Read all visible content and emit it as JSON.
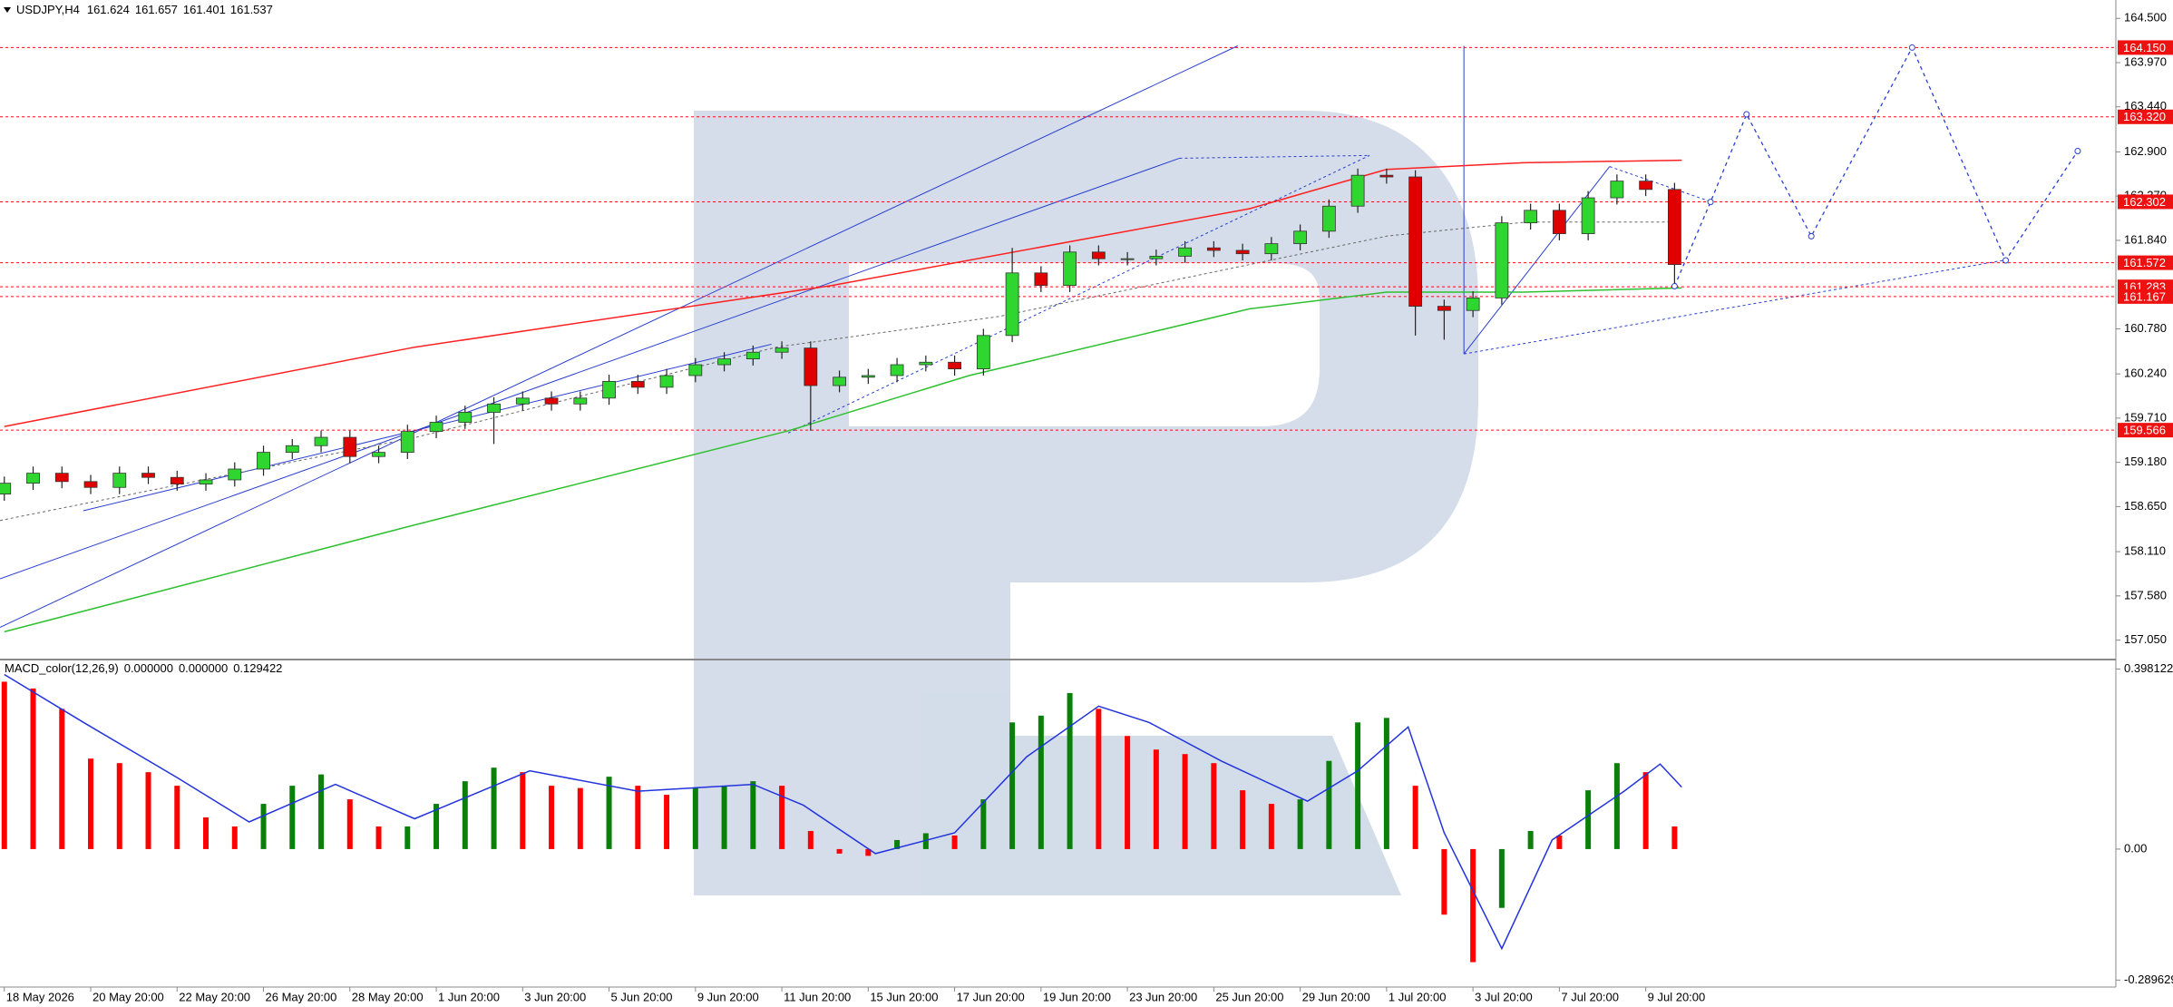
{
  "chart_data": [
    {
      "type": "candlestick",
      "title": "USDJPY,H4",
      "readout": [
        161.624,
        161.657,
        161.401,
        161.537
      ],
      "up_color": "#2fd62f",
      "down_color": "#e00000",
      "xlim": [
        -0.6,
        293.3
      ],
      "ylim": [
        156.85,
        164.72
      ],
      "x": [
        0,
        4,
        8,
        12,
        16,
        20,
        24,
        28,
        32,
        36,
        40,
        44,
        48,
        52,
        56,
        60,
        64,
        68,
        72,
        76,
        80,
        84,
        88,
        92,
        96,
        100,
        104,
        108,
        112,
        116,
        120,
        124,
        128,
        132,
        136,
        140,
        144,
        148,
        152,
        156,
        160,
        164,
        168,
        172,
        176,
        180,
        184,
        188,
        192,
        196,
        200,
        204,
        208,
        212,
        216,
        220,
        224,
        228,
        232
      ],
      "open": [
        158.8,
        158.93,
        159.05,
        158.95,
        158.88,
        159.05,
        159.0,
        158.92,
        158.97,
        159.1,
        159.3,
        159.38,
        159.48,
        159.25,
        159.3,
        159.55,
        159.66,
        159.78,
        159.88,
        159.95,
        159.88,
        159.95,
        160.15,
        160.08,
        160.22,
        160.35,
        160.42,
        160.5,
        160.55,
        160.1,
        160.2,
        160.22,
        160.35,
        160.38,
        160.3,
        160.7,
        161.45,
        161.3,
        161.7,
        161.62,
        161.62,
        161.65,
        161.75,
        161.72,
        161.68,
        161.8,
        161.95,
        162.25,
        162.62,
        162.6,
        161.05,
        161.0,
        161.15,
        162.05,
        162.2,
        161.92,
        162.35,
        162.55,
        162.45
      ],
      "high": [
        159.01,
        159.13,
        159.13,
        159.03,
        159.13,
        159.13,
        159.08,
        159.05,
        159.18,
        159.38,
        159.46,
        159.56,
        159.56,
        159.38,
        159.63,
        159.74,
        159.86,
        159.96,
        160.03,
        160.03,
        160.03,
        160.23,
        160.23,
        160.3,
        160.43,
        160.5,
        160.58,
        160.63,
        160.63,
        160.28,
        160.3,
        160.43,
        160.46,
        160.46,
        160.78,
        161.75,
        161.53,
        161.78,
        161.78,
        161.7,
        161.73,
        161.83,
        161.83,
        161.8,
        161.88,
        162.03,
        162.33,
        162.7,
        162.7,
        162.68,
        161.13,
        161.23,
        162.13,
        162.28,
        162.28,
        162.43,
        162.63,
        162.63,
        162.53
      ],
      "low": [
        158.72,
        158.85,
        158.87,
        158.8,
        158.8,
        158.92,
        158.84,
        158.84,
        158.89,
        159.02,
        159.22,
        159.3,
        159.17,
        159.17,
        159.22,
        159.47,
        159.58,
        159.4,
        159.8,
        159.8,
        159.8,
        159.87,
        160.0,
        160.0,
        160.14,
        160.27,
        160.34,
        160.42,
        159.56,
        160.02,
        160.12,
        160.14,
        160.27,
        160.22,
        160.22,
        160.62,
        161.22,
        161.22,
        161.54,
        161.54,
        161.54,
        161.57,
        161.64,
        161.6,
        161.6,
        161.72,
        161.87,
        162.17,
        162.52,
        160.7,
        160.65,
        160.92,
        161.07,
        161.97,
        161.84,
        161.84,
        162.27,
        162.37,
        161.28
      ],
      "close": [
        158.93,
        159.05,
        158.95,
        158.88,
        159.05,
        159.0,
        158.92,
        158.97,
        159.1,
        159.3,
        159.38,
        159.48,
        159.25,
        159.3,
        159.55,
        159.66,
        159.78,
        159.88,
        159.95,
        159.88,
        159.95,
        160.15,
        160.08,
        160.22,
        160.35,
        160.42,
        160.5,
        160.55,
        160.1,
        160.2,
        160.22,
        160.35,
        160.38,
        160.3,
        160.7,
        161.45,
        161.3,
        161.7,
        161.62,
        161.62,
        161.65,
        161.75,
        161.72,
        161.68,
        161.8,
        161.95,
        162.25,
        162.62,
        162.6,
        161.05,
        161.0,
        161.15,
        162.05,
        162.2,
        161.92,
        162.35,
        162.55,
        162.45,
        161.55
      ],
      "overlays": [
        {
          "color": "#ff2020",
          "x": [
            0,
            57,
            115,
            173,
            192,
            211,
            233
          ],
          "values": [
            159.61,
            160.56,
            161.3,
            162.22,
            162.69,
            162.77,
            162.8
          ]
        },
        {
          "color": "#2ec02e",
          "x": [
            0,
            57,
            109,
            134,
            173,
            192,
            211,
            233
          ],
          "values": [
            157.15,
            158.43,
            159.56,
            160.22,
            161.02,
            161.22,
            161.22,
            161.27
          ]
        }
      ],
      "forecast": {
        "color": "#2a3fd0",
        "x": [
          232,
          237,
          242,
          251,
          265,
          278,
          288
        ],
        "values": [
          161.29,
          162.3,
          163.35,
          161.89,
          164.15,
          161.6,
          162.91
        ]
      },
      "level_color": "#ee1111",
      "levels": [
        {
          "value": 164.15,
          "label": "164.150"
        },
        {
          "value": 163.32,
          "label": "163.320"
        },
        {
          "value": 162.302,
          "label": "162.302"
        },
        {
          "value": 161.572,
          "label": "161.572"
        },
        {
          "value": 161.283,
          "label": "161.283"
        },
        {
          "value": 161.167,
          "label": "161.167"
        },
        {
          "value": 159.566,
          "label": "159.566"
        }
      ],
      "yticks": [
        {
          "value": 164.5,
          "label": "164.500"
        },
        {
          "value": 163.97,
          "label": "163.970"
        },
        {
          "value": 163.44,
          "label": "163.440"
        },
        {
          "value": 162.9,
          "label": "162.900"
        },
        {
          "value": 162.37,
          "label": "162.370"
        },
        {
          "value": 161.84,
          "label": "161.840"
        },
        {
          "value": 160.78,
          "label": "160.780"
        },
        {
          "value": 160.24,
          "label": "160.240"
        },
        {
          "value": 159.71,
          "label": "159.710"
        },
        {
          "value": 159.18,
          "label": "159.180"
        },
        {
          "value": 158.65,
          "label": "158.650"
        },
        {
          "value": 158.11,
          "label": "158.110"
        },
        {
          "value": 157.58,
          "label": "157.580"
        },
        {
          "value": 157.05,
          "label": "157.050"
        }
      ],
      "xticks": [
        {
          "value": 0,
          "label": "18 May 2026"
        },
        {
          "value": 12,
          "label": "20 May 20:00"
        },
        {
          "value": 24,
          "label": "22 May 20:00"
        },
        {
          "value": 36,
          "label": "26 May 20:00"
        },
        {
          "value": 48,
          "label": "28 May 20:00"
        },
        {
          "value": 60,
          "label": "1 Jun 20:00"
        },
        {
          "value": 72,
          "label": "3 Jun 20:00"
        },
        {
          "value": 84,
          "label": "5 Jun 20:00"
        },
        {
          "value": 96,
          "label": "9 Jun 20:00"
        },
        {
          "value": 108,
          "label": "11 Jun 20:00"
        },
        {
          "value": 120,
          "label": "15 Jun 20:00"
        },
        {
          "value": 132,
          "label": "17 Jun 20:00"
        },
        {
          "value": 144,
          "label": "19 Jun 20:00"
        },
        {
          "value": 156,
          "label": "23 Jun 20:00"
        },
        {
          "value": 168,
          "label": "25 Jun 20:00"
        },
        {
          "value": 180,
          "label": "29 Jun 20:00"
        },
        {
          "value": 192,
          "label": "1 Jul 20:00"
        },
        {
          "value": 204,
          "label": "3 Jul 20:00"
        },
        {
          "value": 216,
          "label": "7 Jul 20:00"
        },
        {
          "value": 228,
          "label": "9 Jul 20:00"
        }
      ]
    },
    {
      "type": "bar",
      "title": "MACD_color(12,26,9)",
      "readout": [
        {
          "value": 0,
          "label": "0.000000"
        },
        {
          "value": 0,
          "label": "0.000000"
        },
        {
          "value": 0.129422,
          "label": "0.129422"
        }
      ],
      "up_color": "#0a800a",
      "down_color": "#ff0000",
      "xlim": [
        -0.6,
        293.3
      ],
      "ylim": [
        -0.301,
        0.413
      ],
      "x": [
        0,
        4,
        8,
        12,
        16,
        20,
        24,
        28,
        32,
        36,
        40,
        44,
        48,
        52,
        56,
        60,
        64,
        68,
        72,
        76,
        80,
        84,
        88,
        92,
        96,
        100,
        104,
        108,
        112,
        116,
        120,
        124,
        128,
        132,
        136,
        140,
        144,
        148,
        152,
        156,
        160,
        164,
        168,
        172,
        176,
        180,
        184,
        188,
        192,
        196,
        200,
        204,
        208,
        212,
        216,
        220,
        224,
        228,
        232
      ],
      "values": [
        0.37,
        0.355,
        0.31,
        0.2,
        0.19,
        0.17,
        0.14,
        0.07,
        0.05,
        0.1,
        0.14,
        0.165,
        0.11,
        0.05,
        0.05,
        0.1,
        0.15,
        0.18,
        0.17,
        0.14,
        0.135,
        0.16,
        0.14,
        0.12,
        0.135,
        0.14,
        0.15,
        0.14,
        0.04,
        -0.01,
        -0.015,
        0.02,
        0.035,
        0.03,
        0.11,
        0.28,
        0.295,
        0.345,
        0.31,
        0.25,
        0.22,
        0.21,
        0.19,
        0.13,
        0.1,
        0.11,
        0.195,
        0.28,
        0.29,
        0.14,
        -0.145,
        -0.25,
        -0.13,
        0.04,
        0.03,
        0.13,
        0.19,
        0.17,
        0.05
      ],
      "signal": {
        "color": "#2233dd",
        "x": [
          0,
          11,
          24,
          34,
          46,
          57,
          73,
          88,
          104,
          111,
          121,
          132,
          142,
          152,
          159,
          169,
          181,
          188,
          195,
          200,
          208,
          215,
          225,
          230,
          233
        ],
        "values": [
          0.386,
          0.28,
          0.158,
          0.06,
          0.143,
          0.067,
          0.173,
          0.128,
          0.143,
          0.097,
          -0.01,
          0.036,
          0.204,
          0.316,
          0.28,
          0.195,
          0.106,
          0.173,
          0.27,
          0.036,
          -0.22,
          0.02,
          0.128,
          0.188,
          0.137
        ]
      },
      "yticks": [
        0.398122,
        {
          "value": 0,
          "label": "0.00"
        },
        -0.289629
      ]
    }
  ]
}
